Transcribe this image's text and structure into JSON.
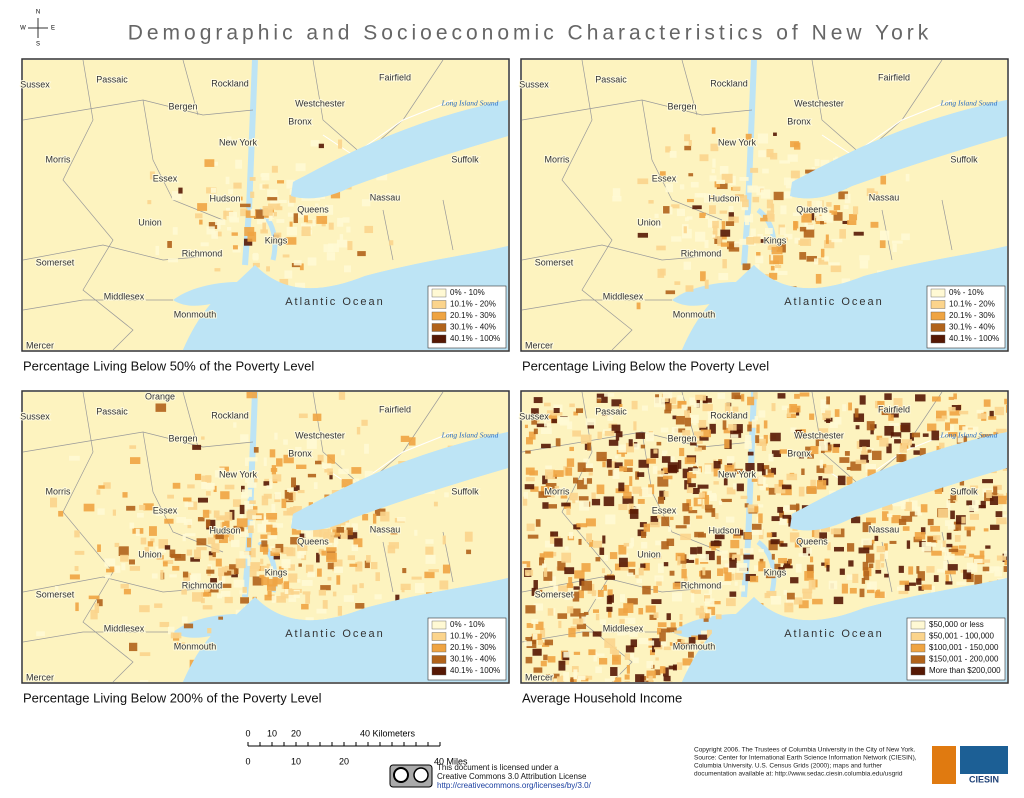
{
  "title": "Demographic and Socioeconomic Characteristics of New York",
  "compass": [
    "N",
    "E",
    "S",
    "W"
  ],
  "places": [
    "Sussex",
    "Passaic",
    "Rockland",
    "Fairfield",
    "Bergen",
    "Westchester",
    "Long Island Sound",
    "Bronx",
    "New York",
    "Morris",
    "Essex",
    "Hudson",
    "Queens",
    "Nassau",
    "Suffolk",
    "Union",
    "Kings",
    "Somerset",
    "Richmond",
    "Atlantic Ocean",
    "Middlesex",
    "Monmouth",
    "Mercer"
  ],
  "panels": [
    {
      "caption": "Percentage Living Below 50% of the Poverty Level",
      "legend": [
        {
          "label": "0% - 10%",
          "color": "#fff9d4"
        },
        {
          "label": "10.1% - 20%",
          "color": "#fbd48c"
        },
        {
          "label": "20.1% - 30%",
          "color": "#efa442"
        },
        {
          "label": "30.1% - 40%",
          "color": "#b1631b"
        },
        {
          "label": "40.1% - 100%",
          "color": "#561804"
        }
      ]
    },
    {
      "caption": "Percentage Living Below the Poverty Level",
      "legend": [
        {
          "label": "0% - 10%",
          "color": "#fff9d4"
        },
        {
          "label": "10.1% - 20%",
          "color": "#fbd48c"
        },
        {
          "label": "20.1% - 30%",
          "color": "#efa442"
        },
        {
          "label": "30.1% - 40%",
          "color": "#b1631b"
        },
        {
          "label": "40.1% - 100%",
          "color": "#561804"
        }
      ]
    },
    {
      "caption": "Percentage Living Below 200% of the Poverty Level",
      "extra_places": [
        "Orange"
      ],
      "legend": [
        {
          "label": "0% - 10%",
          "color": "#fff9d4"
        },
        {
          "label": "10.1% - 20%",
          "color": "#fbd48c"
        },
        {
          "label": "20.1% - 30%",
          "color": "#efa442"
        },
        {
          "label": "30.1% - 40%",
          "color": "#b1631b"
        },
        {
          "label": "40.1% - 100%",
          "color": "#561804"
        }
      ]
    },
    {
      "caption": "Average Household Income",
      "legend": [
        {
          "label": "$50,000 or less",
          "color": "#fff9d4"
        },
        {
          "label": "$50,001 - 100,000",
          "color": "#fbd48c"
        },
        {
          "label": "$100,001 - 150,000",
          "color": "#efa442"
        },
        {
          "label": "$150,001 - 200,000",
          "color": "#b1631b"
        },
        {
          "label": "More than $200,000",
          "color": "#561804"
        }
      ]
    }
  ],
  "scale": {
    "km_ticks": [
      "0",
      "10",
      "20"
    ],
    "km_label": "40 Kilometers",
    "mile_ticks": [
      "0",
      "10",
      "20"
    ],
    "mile_label": "40 Miles"
  },
  "license": [
    "This document is licensed under a",
    "Creative Commons 3.0 Attribution License",
    "http://creativecommons.org/licenses/by/3.0/"
  ],
  "copyright": [
    "Copyright 2006.  The Trustees of Columbia University in the City of New York.",
    "Source: Center for International Earth Science Information Network (CIESIN),",
    "Columbia University.  U.S. Census Grids (2000); maps and further",
    "documentation available at: http://www.sedac.ciesin.columbia.edu/usgrid"
  ],
  "logo": "CIESIN"
}
